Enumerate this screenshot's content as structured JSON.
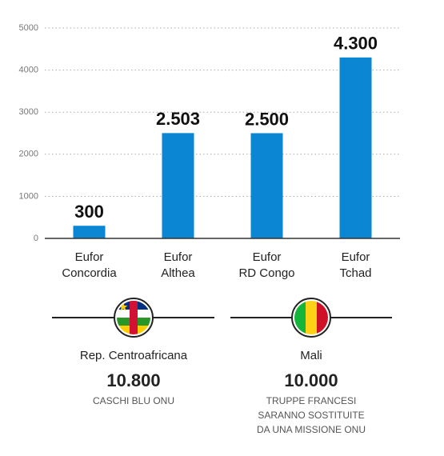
{
  "chart_data": {
    "type": "bar",
    "categories": [
      "Eufor\nConcordia",
      "Eufor\nAlthea",
      "Eufor\nRD Congo",
      "Eufor\nTchad"
    ],
    "values": [
      300,
      2503,
      2500,
      4300
    ],
    "value_labels": [
      "300",
      "2.503",
      "2.500",
      "4.300"
    ],
    "color": "#0a86d2",
    "ylim": [
      0,
      5000
    ],
    "yticks": [
      0,
      1000,
      2000,
      3000,
      4000,
      5000
    ],
    "grid": true
  },
  "panels": [
    {
      "label": "Rep. Centroafricana",
      "value": "10.800",
      "caption": "CASCHI BLU ONU"
    },
    {
      "label": "Mali",
      "value": "10.000",
      "caption": "TRUPPE FRANCESI\nSARANNO SOSTITUITE\nDA UNA MISSIONE ONU"
    }
  ]
}
